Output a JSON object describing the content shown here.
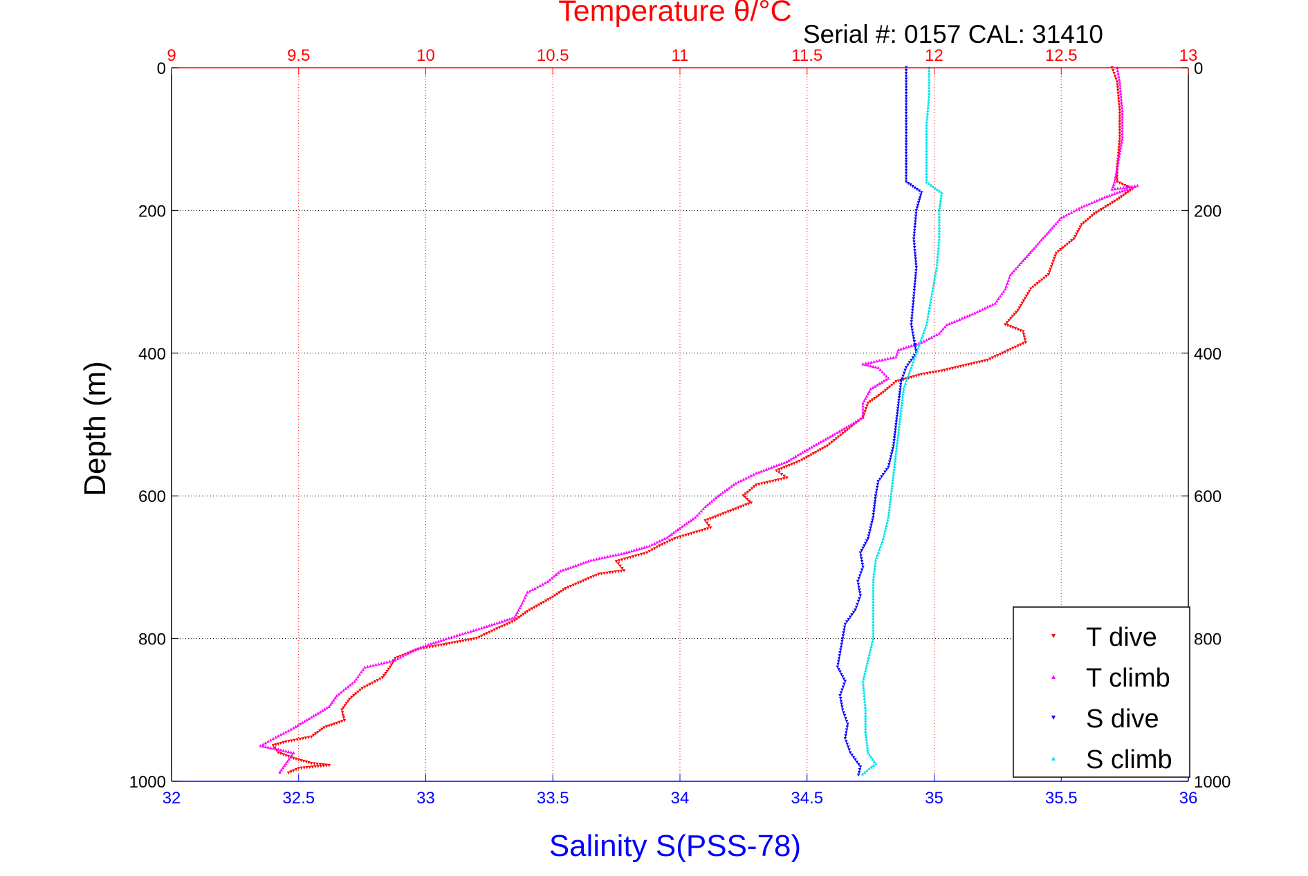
{
  "chart_data": {
    "type": "scatter",
    "title": "Temperature θ/°C",
    "subtitle": "Serial #: 0157  CAL: 31410",
    "ylabel": "Depth (m)",
    "xlabel_bottom": "Salinity S(PSS-78)",
    "xlabel_top": "Temperature θ/°C",
    "ylim": [
      0,
      1000
    ],
    "y_reversed": true,
    "xlim_bottom": [
      32,
      36
    ],
    "xlim_top": [
      9,
      13
    ],
    "yticks": [
      0,
      200,
      400,
      600,
      800,
      1000
    ],
    "xticks_bottom": [
      32,
      32.5,
      33,
      33.5,
      34,
      34.5,
      35,
      35.5,
      36
    ],
    "xticks_top": [
      9,
      9.5,
      10,
      10.5,
      11,
      11.5,
      12,
      12.5,
      13
    ],
    "grid": true,
    "legend_position": "bottom-right",
    "colors": {
      "temperature_axis": "#ff0000",
      "salinity_axis": "#0000ff",
      "grid": "#000000",
      "temperature_grid": "#ff0000"
    },
    "series": [
      {
        "name": "T dive",
        "axis": "top",
        "color": "#ff0000",
        "marker": "triangle-down",
        "points": [
          [
            12.7,
            0
          ],
          [
            12.72,
            20
          ],
          [
            12.73,
            60
          ],
          [
            12.73,
            100
          ],
          [
            12.72,
            140
          ],
          [
            12.72,
            160
          ],
          [
            12.78,
            170
          ],
          [
            12.72,
            185
          ],
          [
            12.63,
            205
          ],
          [
            12.58,
            220
          ],
          [
            12.55,
            240
          ],
          [
            12.48,
            260
          ],
          [
            12.45,
            290
          ],
          [
            12.38,
            310
          ],
          [
            12.33,
            340
          ],
          [
            12.28,
            360
          ],
          [
            12.35,
            370
          ],
          [
            12.36,
            385
          ],
          [
            12.27,
            400
          ],
          [
            12.21,
            410
          ],
          [
            12.03,
            425
          ],
          [
            11.95,
            430
          ],
          [
            11.85,
            440
          ],
          [
            11.8,
            455
          ],
          [
            11.74,
            470
          ],
          [
            11.72,
            490
          ],
          [
            11.65,
            510
          ],
          [
            11.58,
            530
          ],
          [
            11.48,
            550
          ],
          [
            11.38,
            565
          ],
          [
            11.42,
            575
          ],
          [
            11.3,
            585
          ],
          [
            11.25,
            600
          ],
          [
            11.28,
            610
          ],
          [
            11.1,
            635
          ],
          [
            11.12,
            645
          ],
          [
            10.98,
            660
          ],
          [
            10.92,
            670
          ],
          [
            10.87,
            680
          ],
          [
            10.75,
            692
          ],
          [
            10.78,
            705
          ],
          [
            10.68,
            710
          ],
          [
            10.55,
            730
          ],
          [
            10.5,
            742
          ],
          [
            10.4,
            762
          ],
          [
            10.35,
            775
          ],
          [
            10.27,
            788
          ],
          [
            10.2,
            800
          ],
          [
            10.05,
            810
          ],
          [
            9.97,
            815
          ],
          [
            9.88,
            828
          ],
          [
            9.86,
            840
          ],
          [
            9.83,
            855
          ],
          [
            9.75,
            870
          ],
          [
            9.7,
            885
          ],
          [
            9.67,
            900
          ],
          [
            9.68,
            915
          ],
          [
            9.6,
            925
          ],
          [
            9.55,
            938
          ],
          [
            9.45,
            945
          ],
          [
            9.4,
            950
          ],
          [
            9.42,
            960
          ],
          [
            9.48,
            968
          ],
          [
            9.55,
            975
          ],
          [
            9.62,
            978
          ],
          [
            9.5,
            982
          ],
          [
            9.45,
            990
          ]
        ]
      },
      {
        "name": "T climb",
        "axis": "top",
        "color": "#ff00ff",
        "marker": "triangle-up",
        "points": [
          [
            12.72,
            0
          ],
          [
            12.73,
            20
          ],
          [
            12.74,
            60
          ],
          [
            12.74,
            100
          ],
          [
            12.72,
            140
          ],
          [
            12.71,
            160
          ],
          [
            12.7,
            170
          ],
          [
            12.8,
            165
          ],
          [
            12.68,
            180
          ],
          [
            12.58,
            195
          ],
          [
            12.5,
            210
          ],
          [
            12.45,
            230
          ],
          [
            12.4,
            250
          ],
          [
            12.35,
            270
          ],
          [
            12.3,
            290
          ],
          [
            12.28,
            310
          ],
          [
            12.24,
            330
          ],
          [
            12.15,
            345
          ],
          [
            12.05,
            360
          ],
          [
            12.02,
            372
          ],
          [
            11.95,
            385
          ],
          [
            11.86,
            395
          ],
          [
            11.85,
            405
          ],
          [
            11.72,
            415
          ],
          [
            11.78,
            420
          ],
          [
            11.82,
            435
          ],
          [
            11.75,
            450
          ],
          [
            11.72,
            470
          ],
          [
            11.72,
            490
          ],
          [
            11.6,
            515
          ],
          [
            11.5,
            535
          ],
          [
            11.42,
            552
          ],
          [
            11.3,
            568
          ],
          [
            11.22,
            582
          ],
          [
            11.15,
            600
          ],
          [
            11.1,
            615
          ],
          [
            11.06,
            630
          ],
          [
            11.0,
            645
          ],
          [
            10.95,
            658
          ],
          [
            10.88,
            670
          ],
          [
            10.78,
            680
          ],
          [
            10.65,
            690
          ],
          [
            10.53,
            705
          ],
          [
            10.48,
            720
          ],
          [
            10.4,
            735
          ],
          [
            10.38,
            750
          ],
          [
            10.35,
            770
          ],
          [
            10.22,
            785
          ],
          [
            10.08,
            800
          ],
          [
            9.98,
            812
          ],
          [
            9.92,
            822
          ],
          [
            9.88,
            830
          ],
          [
            9.76,
            840
          ],
          [
            9.72,
            860
          ],
          [
            9.65,
            880
          ],
          [
            9.62,
            895
          ],
          [
            9.55,
            910
          ],
          [
            9.48,
            925
          ],
          [
            9.4,
            940
          ],
          [
            9.35,
            950
          ],
          [
            9.42,
            955
          ],
          [
            9.48,
            960
          ],
          [
            9.45,
            975
          ],
          [
            9.42,
            990
          ]
        ]
      },
      {
        "name": "S dive",
        "axis": "bottom",
        "color": "#0000ff",
        "marker": "triangle-down",
        "points": [
          [
            34.89,
            0
          ],
          [
            34.89,
            40
          ],
          [
            34.89,
            80
          ],
          [
            34.89,
            120
          ],
          [
            34.89,
            160
          ],
          [
            34.95,
            175
          ],
          [
            34.93,
            200
          ],
          [
            34.92,
            240
          ],
          [
            34.93,
            280
          ],
          [
            34.92,
            320
          ],
          [
            34.91,
            360
          ],
          [
            34.93,
            400
          ],
          [
            34.89,
            420
          ],
          [
            34.87,
            440
          ],
          [
            34.86,
            470
          ],
          [
            34.85,
            500
          ],
          [
            34.84,
            530
          ],
          [
            34.82,
            560
          ],
          [
            34.78,
            580
          ],
          [
            34.77,
            600
          ],
          [
            34.76,
            630
          ],
          [
            34.74,
            660
          ],
          [
            34.71,
            680
          ],
          [
            34.72,
            700
          ],
          [
            34.7,
            720
          ],
          [
            34.71,
            740
          ],
          [
            34.69,
            760
          ],
          [
            34.65,
            780
          ],
          [
            34.64,
            800
          ],
          [
            34.63,
            820
          ],
          [
            34.62,
            840
          ],
          [
            34.65,
            860
          ],
          [
            34.63,
            880
          ],
          [
            34.64,
            900
          ],
          [
            34.66,
            920
          ],
          [
            34.65,
            940
          ],
          [
            34.67,
            960
          ],
          [
            34.71,
            980
          ],
          [
            34.7,
            995
          ]
        ]
      },
      {
        "name": "S climb",
        "axis": "bottom",
        "color": "#00e5ee",
        "marker": "triangle-up",
        "points": [
          [
            34.98,
            0
          ],
          [
            34.98,
            40
          ],
          [
            34.97,
            80
          ],
          [
            34.97,
            120
          ],
          [
            34.97,
            160
          ],
          [
            35.03,
            175
          ],
          [
            35.02,
            200
          ],
          [
            35.02,
            240
          ],
          [
            35.01,
            280
          ],
          [
            34.99,
            320
          ],
          [
            34.97,
            360
          ],
          [
            34.93,
            400
          ],
          [
            34.91,
            420
          ],
          [
            34.88,
            450
          ],
          [
            34.87,
            480
          ],
          [
            34.86,
            510
          ],
          [
            34.85,
            540
          ],
          [
            34.84,
            570
          ],
          [
            34.83,
            600
          ],
          [
            34.82,
            630
          ],
          [
            34.8,
            660
          ],
          [
            34.77,
            690
          ],
          [
            34.76,
            720
          ],
          [
            34.76,
            760
          ],
          [
            34.76,
            800
          ],
          [
            34.74,
            830
          ],
          [
            34.72,
            860
          ],
          [
            34.73,
            900
          ],
          [
            34.73,
            930
          ],
          [
            34.74,
            960
          ],
          [
            34.77,
            975
          ],
          [
            34.71,
            992
          ]
        ]
      }
    ]
  }
}
